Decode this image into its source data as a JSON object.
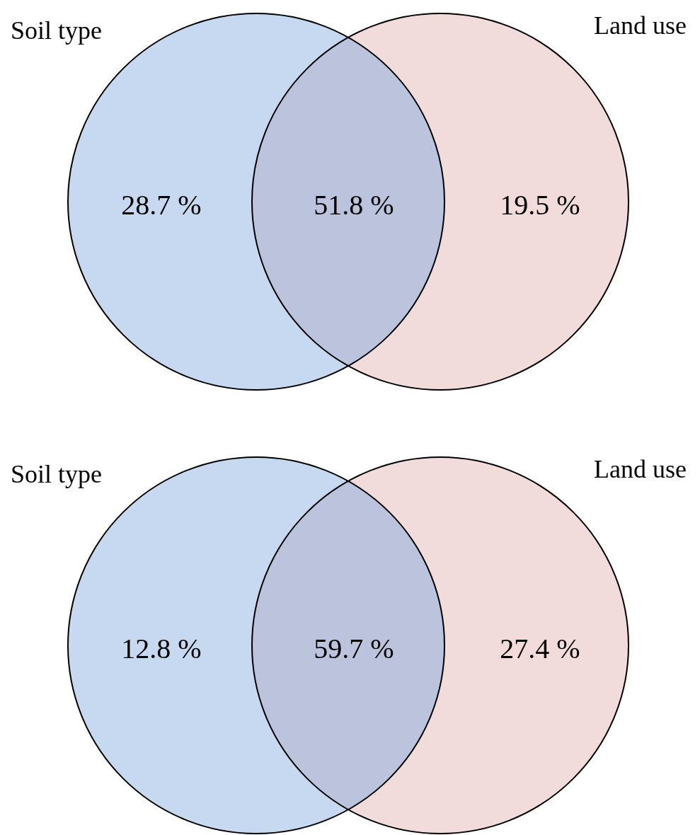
{
  "chart_data": [
    {
      "type": "other",
      "categories": [
        "Soil type",
        null,
        "Land use"
      ],
      "values": [
        28.7,
        51.8,
        19.5
      ],
      "value_labels": [
        "28.7 %",
        "51.8 %",
        "19.5 %"
      ],
      "colors": [
        "#c6d9f0",
        "#bcc3dc",
        "#f2dcdb"
      ]
    },
    {
      "type": "other",
      "categories": [
        "Soil type",
        null,
        "Land use"
      ],
      "values": [
        12.8,
        59.7,
        27.4
      ],
      "value_labels": [
        "12.8 %",
        "59.7 %",
        "27.4 %"
      ],
      "colors": [
        "#c6d9f0",
        "#bcc3dc",
        "#f2dcdb"
      ]
    }
  ]
}
